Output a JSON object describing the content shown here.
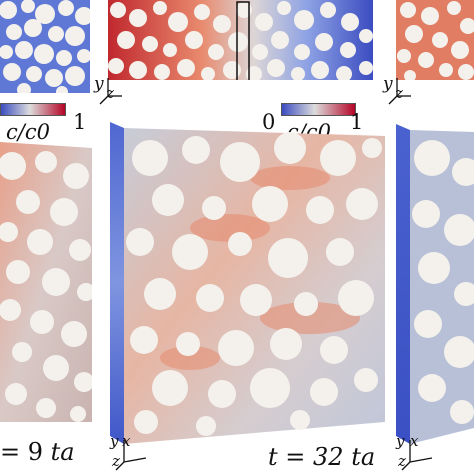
{
  "colorbar_left": {
    "min": "",
    "max": "1",
    "label": "c/c0"
  },
  "colorbar_mid": {
    "min": "0",
    "max": "1",
    "label": "c/c0"
  },
  "colors": {
    "low": "#3b4cc0",
    "mid": "#dddcdc",
    "high": "#b40426",
    "particle": "#f4f1ec",
    "frame": "#111111"
  },
  "time_left": {
    "prefix": "= 9 ",
    "unit": "ta"
  },
  "time_mid": {
    "prefix": "t = 32 ",
    "unit": "ta"
  },
  "axes_labels": {
    "y": "y",
    "x": "x",
    "z": "z"
  }
}
